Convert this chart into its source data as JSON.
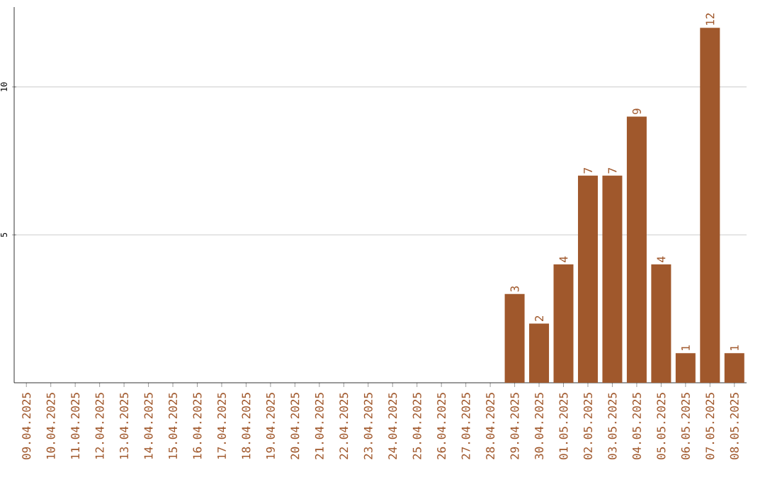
{
  "chart_data": {
    "type": "bar",
    "categories": [
      "09.04.2025",
      "10.04.2025",
      "11.04.2025",
      "12.04.2025",
      "13.04.2025",
      "14.04.2025",
      "15.04.2025",
      "16.04.2025",
      "17.04.2025",
      "18.04.2025",
      "19.04.2025",
      "20.04.2025",
      "21.04.2025",
      "22.04.2025",
      "23.04.2025",
      "24.04.2025",
      "25.04.2025",
      "26.04.2025",
      "27.04.2025",
      "28.04.2025",
      "29.04.2025",
      "30.04.2025",
      "01.05.2025",
      "02.05.2025",
      "03.05.2025",
      "04.05.2025",
      "05.05.2025",
      "06.05.2025",
      "07.05.2025",
      "08.05.2025"
    ],
    "values": [
      0,
      0,
      0,
      0,
      0,
      0,
      0,
      0,
      0,
      0,
      0,
      0,
      0,
      0,
      0,
      0,
      0,
      0,
      0,
      0,
      3,
      2,
      4,
      7,
      7,
      9,
      4,
      1,
      12,
      1
    ],
    "value_labels": [
      null,
      null,
      null,
      null,
      null,
      null,
      null,
      null,
      null,
      null,
      null,
      null,
      null,
      null,
      null,
      null,
      null,
      null,
      null,
      null,
      "3",
      "2",
      "4",
      "7",
      "7",
      "9",
      "4",
      "1",
      "12",
      "1"
    ],
    "color": "#a0582c",
    "ylim": [
      0,
      12.7
    ],
    "yticks": [
      5,
      10
    ],
    "grid": "y"
  }
}
